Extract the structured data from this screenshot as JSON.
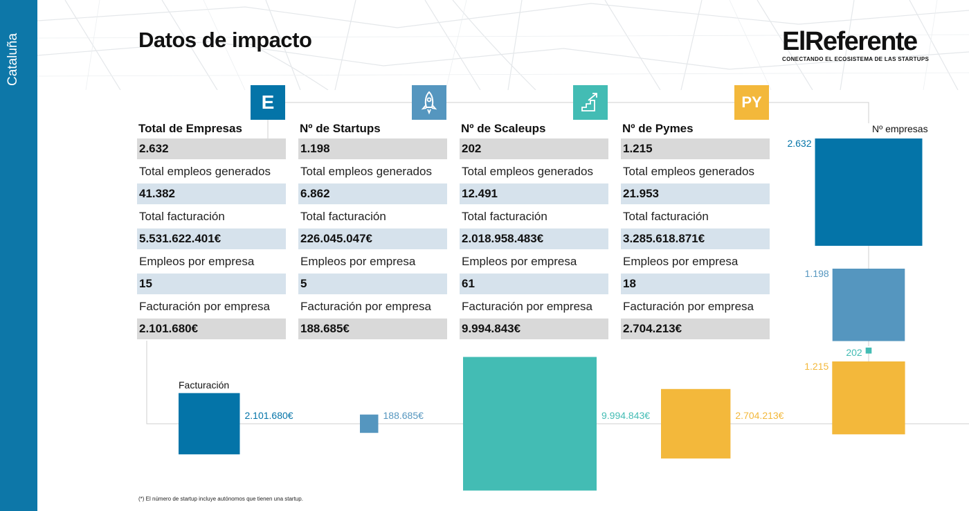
{
  "sidebar": {
    "region": "Cataluña"
  },
  "header": {
    "title": "Datos de impacto"
  },
  "logo": {
    "name": "ElReferente",
    "tagline": "CONECTANDO EL ECOSISTEMA DE LAS STARTUPS"
  },
  "colors": {
    "empresas": "#0474a8",
    "startups": "#5596bf",
    "scaleups": "#43bcb4",
    "pymes": "#f3b83b",
    "sidebar": "#0d77a8"
  },
  "columns": [
    {
      "icon": "E",
      "icon_name": "letter-e-icon",
      "title": "Total de Empresas",
      "count": "2.632",
      "empleos_label": "Total empleos generados",
      "empleos": "41.382",
      "facturacion_label": "Total facturación",
      "facturacion": "5.531.622.401€",
      "empleos_empresa_label": "Empleos por empresa",
      "empleos_empresa": "15",
      "fact_empresa_label": "Facturación por empresa",
      "fact_empresa": "2.101.680€"
    },
    {
      "icon": "",
      "icon_name": "rocket-icon",
      "title": "Nº de Startups",
      "count": "1.198",
      "empleos_label": "Total empleos generados",
      "empleos": "6.862",
      "facturacion_label": "Total facturación",
      "facturacion": "226.045.047€",
      "empleos_empresa_label": "Empleos por empresa",
      "empleos_empresa": "5",
      "fact_empresa_label": "Facturación por empresa",
      "fact_empresa": "188.685€"
    },
    {
      "icon": "",
      "icon_name": "stairs-arrow-icon",
      "title": "Nº de Scaleups",
      "count": "202",
      "empleos_label": "Total empleos generados",
      "empleos": "12.491",
      "facturacion_label": "Total facturación",
      "facturacion": "2.018.958.483€",
      "empleos_empresa_label": "Empleos por empresa",
      "empleos_empresa": "61",
      "fact_empresa_label": "Facturación por empresa",
      "fact_empresa": "9.994.843€"
    },
    {
      "icon": "PY",
      "icon_name": "letters-py-icon",
      "title": "Nº de Pymes",
      "count": "1.215",
      "empleos_label": "Total empleos generados",
      "empleos": "21.953",
      "facturacion_label": "Total facturación",
      "facturacion": "3.285.618.871€",
      "empleos_empresa_label": "Empleos por empresa",
      "empleos_empresa": "18",
      "fact_empresa_label": "Facturación por empresa",
      "fact_empresa": "2.704.213€"
    }
  ],
  "chart_data": [
    {
      "type": "bar",
      "title": "Nº empresas",
      "categories": [
        "Empresas",
        "Startups",
        "Scaleups",
        "Pymes"
      ],
      "values": [
        2632,
        1198,
        202,
        1215
      ],
      "labels": [
        "2.632",
        "1.198",
        "202",
        "1.215"
      ]
    },
    {
      "type": "bar",
      "title": "Facturación",
      "categories": [
        "Empresas",
        "Startups",
        "Scaleups",
        "Pymes"
      ],
      "values": [
        2101680,
        188685,
        9994843,
        2704213
      ],
      "labels": [
        "2.101.680€",
        "188.685€",
        "9.994.843€",
        "2.704.213€"
      ]
    }
  ],
  "footnote": "(*) El número de startup incluye autónomos que tienen una startup."
}
